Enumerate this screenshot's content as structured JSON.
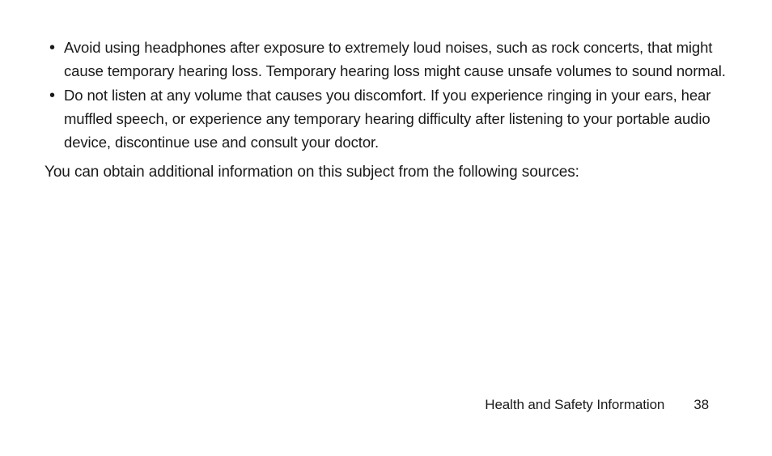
{
  "bullets": [
    "Avoid using headphones after exposure to extremely loud noises, such as rock concerts, that might cause temporary hearing loss. Temporary hearing loss might cause unsafe volumes to sound normal.",
    "Do not listen at any volume that causes you discomfort. If you experience ringing in your ears, hear muffled speech, or experience any temporary hearing difficulty after listening to your portable audio device, discontinue use and consult your doctor."
  ],
  "body_paragraph": "You can obtain additional information on this subject from the following sources:",
  "footer": {
    "section_label": "Health and Safety Information",
    "page_number": "38"
  },
  "colors": {
    "background": "#ffffff",
    "text": "#1a1a1a"
  },
  "font_sizes_pt": {
    "bullet": 18.5,
    "body": 19,
    "footer": 17
  }
}
